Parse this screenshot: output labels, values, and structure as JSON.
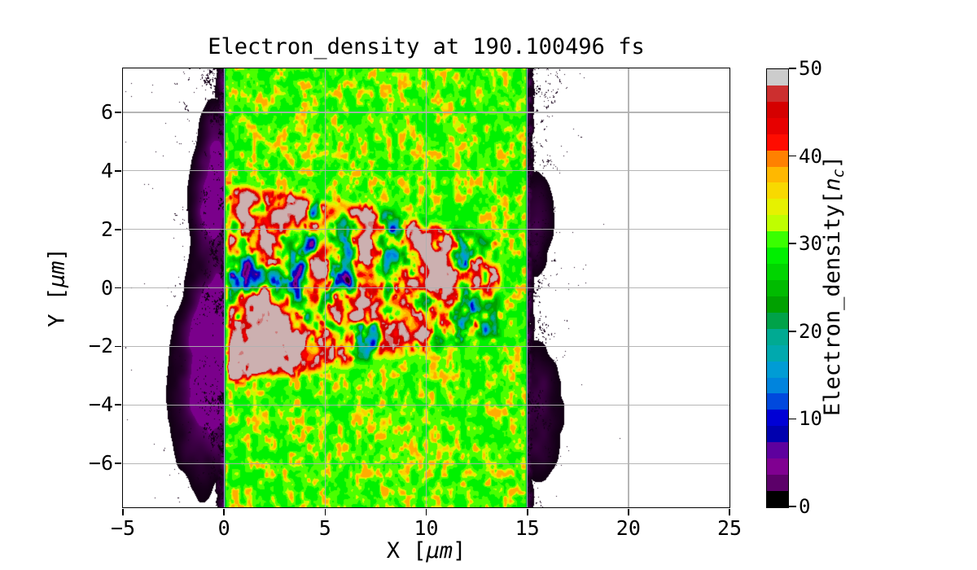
{
  "figure": {
    "background": "#ffffff"
  },
  "chart_data": {
    "type": "heatmap",
    "title": "Electron_density at 190.100496 fs",
    "time_fs": "190.100496",
    "xlabel_parts": [
      "X [",
      "μm",
      "]"
    ],
    "ylabel_parts": [
      "Y [",
      "μm",
      "]"
    ],
    "colorbar_label_parts": [
      "Electron_density[",
      "n",
      "c",
      "]"
    ],
    "xlim": [
      -5,
      25
    ],
    "ylim": [
      -7.5,
      7.5
    ],
    "x_ticks": [
      -5,
      0,
      5,
      10,
      15,
      20,
      25
    ],
    "y_ticks": [
      -6,
      -4,
      -2,
      0,
      2,
      4,
      6
    ],
    "grid": true,
    "grid_color": "#b0b0b0",
    "colorbar": {
      "vmin": 0,
      "vmax": 50,
      "ticks": [
        0,
        10,
        20,
        30,
        40,
        50
      ],
      "levels": 27
    },
    "colormap": {
      "name": "nipy_spectral",
      "saturated_tint": [
        0.8,
        0.69,
        0.69
      ],
      "anchors": [
        [
          0,
          0,
          0
        ],
        [
          0.4667,
          0,
          0.5333
        ],
        [
          0.5333,
          0,
          0.6
        ],
        [
          0,
          0,
          0.6667
        ],
        [
          0,
          0,
          0.8667
        ],
        [
          0,
          0.4667,
          0.8667
        ],
        [
          0,
          0.6,
          0.8667
        ],
        [
          0,
          0.6667,
          0.6667
        ],
        [
          0,
          0.6667,
          0.5333
        ],
        [
          0,
          0.6,
          0
        ],
        [
          0,
          0.7333,
          0
        ],
        [
          0,
          0.8667,
          0
        ],
        [
          0,
          1,
          0
        ],
        [
          0.7333,
          1,
          0
        ],
        [
          0.9333,
          0.9333,
          0
        ],
        [
          1,
          0.8,
          0
        ],
        [
          1,
          0.6,
          0
        ],
        [
          1,
          0,
          0
        ],
        [
          0.8667,
          0,
          0
        ],
        [
          0.8,
          0,
          0
        ],
        [
          0.8,
          0.8,
          0.8
        ]
      ]
    },
    "regions": {
      "target_slab": {
        "x_range": [
          0,
          15
        ],
        "base_density_nc": 30,
        "speckle_density_nc": [
          27,
          37
        ],
        "edge_ramp_um": 0.09,
        "appearance": "uniform green plasma slab with yellow-green cellular speckle"
      },
      "wake_channel": {
        "x_start": 0.1,
        "x_end": 13.9,
        "y_top_at_x0": 3.72,
        "y_bottom_at_x0": -3.38,
        "taper_linear": 0.07,
        "taper_quad": 0.005,
        "density_range_nc": [
          0,
          55
        ],
        "saturated_above_nc": 50,
        "appearance": "turbulent filaments: gray saturated cores ringed by red/orange/yellow, blue and violet low-density holes"
      },
      "vacuum_left": {
        "x_range": [
          -5,
          0
        ],
        "speckle_scale_um": 1.9,
        "speckle_density_at_edge": 0.4,
        "dark_band_width_um": 0.5,
        "appearance": "white vacuum with black expanding-plasma speckles densifying toward target front"
      },
      "vacuum_right": {
        "x_range": [
          15,
          25
        ],
        "speckle_scale_um": 1.5,
        "speckle_density_at_edge": 0.46,
        "dark_band_width_um": 0.42,
        "appearance": "white vacuum with black speckles densifying toward rear surface"
      },
      "purple_clouds": [
        {
          "x": -0.55,
          "y": -1.6,
          "rx": 0.75,
          "ry": 1.5,
          "amp": 3.4
        },
        {
          "x": -0.9,
          "y": -3.8,
          "rx": 0.9,
          "ry": 1.6,
          "amp": 2.6
        },
        {
          "x": -0.5,
          "y": 3.1,
          "rx": 0.6,
          "ry": 1.2,
          "amp": 3.0
        },
        {
          "x": -0.3,
          "y": 5.0,
          "rx": 0.45,
          "ry": 0.8,
          "amp": 1.8
        },
        {
          "x": 15.55,
          "y": -4.3,
          "rx": 0.7,
          "ry": 1.3,
          "amp": 1.5
        },
        {
          "x": 15.45,
          "y": 2.2,
          "rx": 0.5,
          "ry": 1.0,
          "amp": 1.3
        }
      ]
    }
  }
}
